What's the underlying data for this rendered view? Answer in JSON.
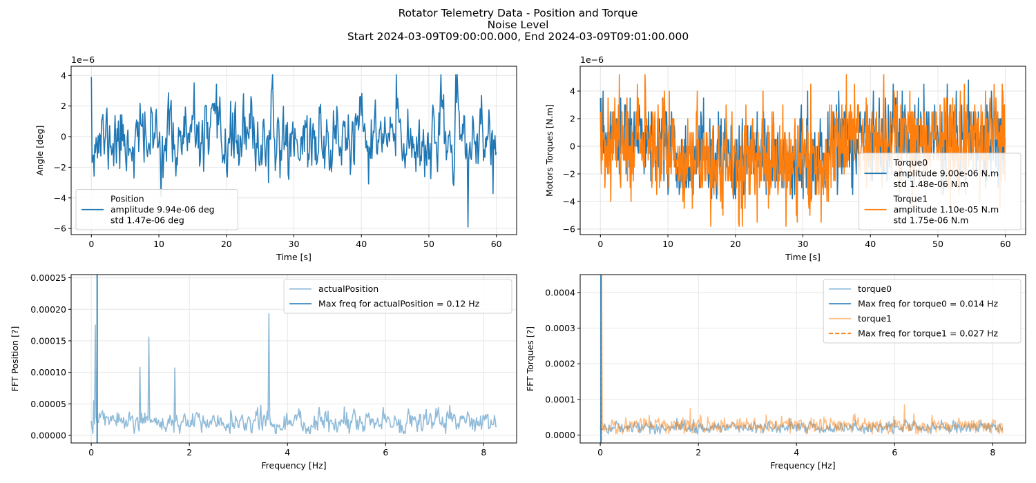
{
  "figure": {
    "title_lines": [
      "Rotator Telemetry Data - Position and Torque",
      "Noise Level",
      "Start 2024-03-09T09:00:00.000, End 2024-03-09T09:01:00.000"
    ]
  },
  "colors": {
    "blue": "#1f77b4",
    "orange": "#ff7f0e",
    "grid": "#e6e6e6"
  },
  "chart_data": [
    {
      "type": "line",
      "xlabel": "Time [s]",
      "ylabel": "Angle [deg]",
      "offset_text": "1e−6",
      "xlim": [
        -3,
        63
      ],
      "ylim": [
        -6.4,
        4.6
      ],
      "y_scale": 1e-06,
      "xticks": [
        0,
        10,
        20,
        30,
        40,
        50,
        60
      ],
      "yticks": [
        -6,
        -4,
        -2,
        0,
        2,
        4
      ],
      "ytick_labels": [
        "−6",
        "−4",
        "−2",
        "0",
        "2",
        "4"
      ],
      "grid": true,
      "legend_position": "lower-left",
      "legend": [
        {
          "label_lines": [
            "Position",
            "  amplitude 9.94e-06 deg",
            "  std 1.47e-06 deg"
          ],
          "color": "#1f77b4",
          "dashed": false
        }
      ],
      "series": [
        {
          "name": "Position",
          "color": "#1f77b4",
          "width": 1.6,
          "alpha": 1,
          "dashed": false,
          "x_range": [
            0,
            60
          ],
          "n": 600,
          "seed": 11,
          "mean": -0.2,
          "std": 1.47,
          "smooth": 0.45,
          "min": -5.9,
          "max": 4.05,
          "spikes": [
            [
              0,
              3.9
            ],
            [
              45.2,
              4.05
            ],
            [
              55.8,
              -5.9
            ],
            [
              0.3,
              -1.2
            ]
          ]
        }
      ]
    },
    {
      "type": "line",
      "xlabel": "Time [s]",
      "ylabel": "Motors Torques [N.m]",
      "offset_text": "1e−6",
      "xlim": [
        -3,
        63
      ],
      "ylim": [
        -6.4,
        5.8
      ],
      "y_scale": 1e-06,
      "xticks": [
        0,
        10,
        20,
        30,
        40,
        50,
        60
      ],
      "yticks": [
        -6,
        -4,
        -2,
        0,
        2,
        4
      ],
      "ytick_labels": [
        "−6",
        "−4",
        "−2",
        "0",
        "2",
        "4"
      ],
      "grid": true,
      "legend_position": "lower-right",
      "legend": [
        {
          "label_lines": [
            "Torque0",
            "  amplitude 9.00e-06 N.m",
            "  std 1.48e-06 N.m"
          ],
          "color": "#1f77b4",
          "dashed": false
        },
        {
          "label_lines": [
            "Torque1",
            "  amplitude 1.10e-05 N.m",
            "  std 1.75e-06 N.m"
          ],
          "color": "#ff7f0e",
          "dashed": false
        }
      ],
      "series": [
        {
          "name": "Torque0",
          "color": "#1f77b4",
          "width": 1.6,
          "alpha": 1,
          "dashed": false,
          "x_range": [
            0,
            60
          ],
          "n": 900,
          "seed": 23,
          "mean": 0,
          "std": 1.48,
          "smooth": 0,
          "quantum": 1.0,
          "min": -3.8,
          "max": 4.8,
          "drift": "torque"
        },
        {
          "name": "Torque1",
          "color": "#ff7f0e",
          "width": 1.6,
          "alpha": 1,
          "dashed": false,
          "x_range": [
            0,
            60
          ],
          "n": 900,
          "seed": 37,
          "mean": 0,
          "std": 1.75,
          "smooth": 0,
          "quantum": 1.0,
          "min": -5.8,
          "max": 5.2,
          "drift": "torque",
          "spikes": [
            [
              42,
              5.2
            ],
            [
              21,
              -5.8
            ],
            [
              27.5,
              -5.8
            ]
          ]
        }
      ]
    },
    {
      "type": "line",
      "xlabel": "Frequency [Hz]",
      "ylabel": "FFT Position [?]",
      "xlim": [
        -0.41,
        8.67
      ],
      "ylim": [
        -1.2e-05,
        0.000255
      ],
      "y_scale": 1,
      "xticks": [
        0,
        2,
        4,
        6,
        8
      ],
      "yticks": [
        0,
        5e-05,
        0.0001,
        0.00015,
        0.0002,
        0.00025
      ],
      "ytick_labels": [
        "0.00000",
        "0.00005",
        "0.00010",
        "0.00015",
        "0.00020",
        "0.00025"
      ],
      "grid": true,
      "legend_position": "upper-right",
      "legend": [
        {
          "label_lines": [
            "actualPosition"
          ],
          "color": "#1f77b4",
          "alpha": 0.5,
          "dashed": false
        },
        {
          "label_lines": [
            "Max freq for actualPosition = 0.12 Hz"
          ],
          "color": "#1f77b4",
          "dashed": false
        }
      ],
      "series": [
        {
          "name": "actualPosition",
          "color": "#1f77b4",
          "width": 1.6,
          "alpha": 0.5,
          "dashed": false,
          "x_range": [
            0,
            8.25
          ],
          "n": 500,
          "seed": 5,
          "mean": 2.2e-05,
          "std": 9.5e-06,
          "smooth": 0.35,
          "min": 3e-06,
          "max": 6e-05,
          "spikes": [
            [
              0.08,
              0.000175
            ],
            [
              1.0,
              0.000108
            ],
            [
              1.18,
              0.000156
            ],
            [
              1.7,
              0.000107
            ],
            [
              3.62,
              0.000193
            ],
            [
              0.05,
              5.5e-05
            ]
          ]
        }
      ],
      "vlines": [
        {
          "x": 0.12,
          "color": "#1f77b4",
          "dashed": false
        }
      ]
    },
    {
      "type": "line",
      "xlabel": "Frequency [Hz]",
      "ylabel": "FFT Torques [?]",
      "xlim": [
        -0.41,
        8.67
      ],
      "ylim": [
        -2.2e-05,
        0.00045
      ],
      "y_scale": 1,
      "xticks": [
        0,
        2,
        4,
        6,
        8
      ],
      "yticks": [
        0,
        0.0001,
        0.0002,
        0.0003,
        0.0004
      ],
      "ytick_labels": [
        "0.0000",
        "0.0001",
        "0.0002",
        "0.0003",
        "0.0004"
      ],
      "grid": true,
      "legend_position": "upper-right",
      "legend": [
        {
          "label_lines": [
            "torque0"
          ],
          "color": "#1f77b4",
          "alpha": 0.5,
          "dashed": false
        },
        {
          "label_lines": [
            "Max freq for torque0 = 0.014 Hz"
          ],
          "color": "#1f77b4",
          "dashed": false
        },
        {
          "label_lines": [
            "torque1"
          ],
          "color": "#ff7f0e",
          "alpha": 0.5,
          "dashed": false
        },
        {
          "label_lines": [
            "Max freq for torque1 = 0.027 Hz"
          ],
          "color": "#ff7f0e",
          "dashed": true
        }
      ],
      "series": [
        {
          "name": "torque0",
          "color": "#1f77b4",
          "width": 1.6,
          "alpha": 0.5,
          "dashed": false,
          "x_range": [
            0,
            8.2
          ],
          "n": 600,
          "seed": 41,
          "mean": 2.2e-05,
          "std": 8.5e-06,
          "smooth": 0.3,
          "min": 4e-06,
          "max": 5e-05,
          "spikes": [
            [
              0.0,
              0.00044
            ],
            [
              0.014,
              0.00044
            ]
          ]
        },
        {
          "name": "torque1",
          "color": "#ff7f0e",
          "width": 1.6,
          "alpha": 0.5,
          "dashed": false,
          "x_range": [
            0,
            8.2
          ],
          "n": 600,
          "seed": 59,
          "mean": 2.7e-05,
          "std": 1.15e-05,
          "smooth": 0.3,
          "min": 4e-06,
          "max": 8.5e-05,
          "spikes": [
            [
              0.027,
              0.00044
            ],
            [
              6.2,
              8.5e-05
            ],
            [
              1.83,
              7.5e-05
            ]
          ]
        }
      ],
      "vlines": [
        {
          "x": 0.014,
          "color": "#1f77b4",
          "dashed": false
        },
        {
          "x": 0.027,
          "color": "#ff7f0e",
          "dashed": true
        }
      ]
    }
  ]
}
